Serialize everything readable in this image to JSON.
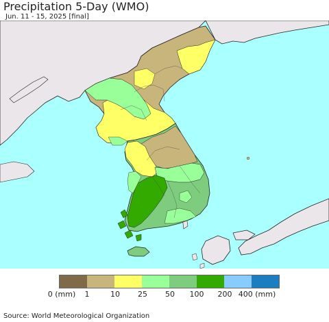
{
  "header": {
    "title": "Precipitation 5-Day (WMO)",
    "subtitle": "Jun. 11 - 15, 2025 [final]"
  },
  "legend": {
    "colors": [
      "#7f6a4a",
      "#c8b57c",
      "#ffff66",
      "#99ff99",
      "#7ecc7e",
      "#33aa00",
      "#88ccff",
      "#1a7ec0"
    ],
    "labels": [
      "0 (mm)",
      "1",
      "10",
      "25",
      "50",
      "100",
      "200",
      "400 (mm)"
    ]
  },
  "footer": {
    "source": "Source: World Meteorological Organization"
  },
  "map_colors": {
    "ocean": "#aaffff",
    "land_outside": "#ebe6ea",
    "border": "#222222"
  }
}
